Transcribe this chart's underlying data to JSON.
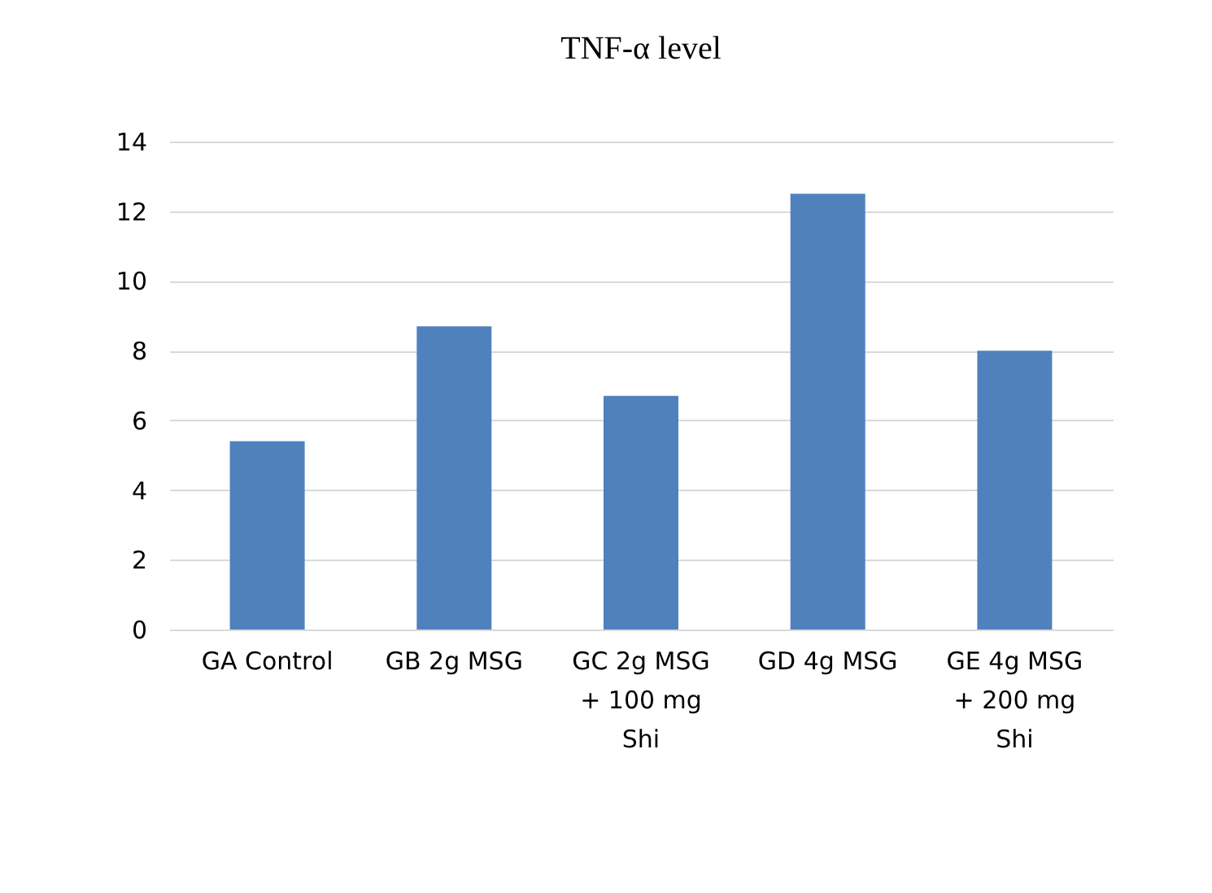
{
  "chart_data": {
    "type": "bar",
    "title": "TNF-α level",
    "categories": [
      "GA Control",
      "GB 2g MSG",
      "GC 2g MSG + 100 mg Shi",
      "GD 4g MSG",
      "GE 4g MSG + 200 mg Shi"
    ],
    "values": [
      5.4,
      8.7,
      6.7,
      12.5,
      8.0
    ],
    "color": "#4f81bd",
    "ylim": [
      0,
      14
    ],
    "yticks": [
      0,
      2,
      4,
      6,
      8,
      10,
      12,
      14
    ],
    "grid": "y"
  }
}
